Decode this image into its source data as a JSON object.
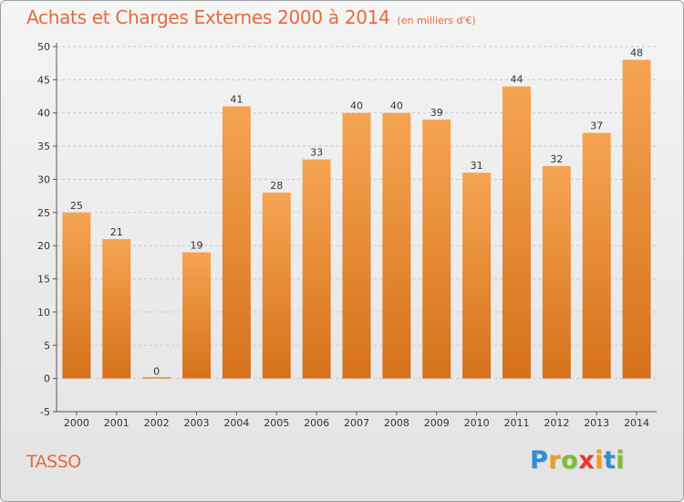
{
  "title": "Achats et Charges Externes 2000 à 2014",
  "subtitle": "(en milliers d'€)",
  "commune": "TASSO",
  "logo": {
    "letters": [
      "P",
      "r",
      "o",
      "x",
      "i",
      "t",
      "i"
    ],
    "colors": [
      "#2a8fd6",
      "#f29b1d",
      "#7cbf2a",
      "#e23b2e",
      "#f29b1d",
      "#2a8fd6",
      "#7cbf2a"
    ]
  },
  "colors": {
    "bar_top": "#f6a452",
    "bar_bottom": "#d5711a",
    "accent": "#e46b3c"
  },
  "chart_data": {
    "type": "bar",
    "categories": [
      "2000",
      "2001",
      "2002",
      "2003",
      "2004",
      "2005",
      "2006",
      "2007",
      "2008",
      "2009",
      "2010",
      "2011",
      "2012",
      "2013",
      "2014"
    ],
    "values": [
      25,
      21,
      0,
      19,
      41,
      28,
      33,
      40,
      40,
      39,
      31,
      44,
      32,
      37,
      48
    ],
    "data_labels": [
      "25",
      "21",
      "0",
      "19",
      "41",
      "28",
      "33",
      "40",
      "40",
      "39",
      "31",
      "44",
      "32",
      "37",
      "48"
    ],
    "yticks": [
      "50",
      "45",
      "40",
      "35",
      "30",
      "25",
      "20",
      "15",
      "10",
      "5",
      "0",
      "-5"
    ],
    "ylim": [
      -5,
      50
    ],
    "grid": true,
    "title": "Achats et Charges Externes 2000 à 2014",
    "xlabel": "",
    "ylabel": ""
  }
}
